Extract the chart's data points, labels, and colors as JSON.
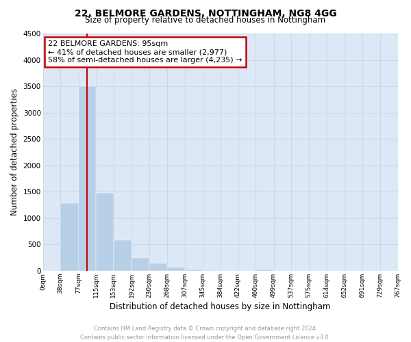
{
  "title1": "22, BELMORE GARDENS, NOTTINGHAM, NG8 4GG",
  "title2": "Size of property relative to detached houses in Nottingham",
  "xlabel": "Distribution of detached houses by size in Nottingham",
  "ylabel": "Number of detached properties",
  "annotation_line1": "22 BELMORE GARDENS: 95sqm",
  "annotation_line2": "← 41% of detached houses are smaller (2,977)",
  "annotation_line3": "58% of semi-detached houses are larger (4,235) →",
  "property_size_sqm": 95,
  "bins": [
    0,
    38,
    77,
    115,
    153,
    192,
    230,
    268,
    307,
    345,
    384,
    422,
    460,
    499,
    537,
    575,
    614,
    652,
    691,
    729,
    767
  ],
  "bin_labels": [
    "0sqm",
    "38sqm",
    "77sqm",
    "115sqm",
    "153sqm",
    "192sqm",
    "230sqm",
    "268sqm",
    "307sqm",
    "345sqm",
    "384sqm",
    "422sqm",
    "460sqm",
    "499sqm",
    "537sqm",
    "575sqm",
    "614sqm",
    "652sqm",
    "691sqm",
    "729sqm",
    "767sqm"
  ],
  "bar_heights": [
    0,
    1280,
    3500,
    1480,
    580,
    250,
    140,
    70,
    30,
    10,
    5,
    0,
    20,
    0,
    0,
    0,
    0,
    0,
    0,
    0
  ],
  "bar_color": "#b8cfe8",
  "vline_color": "#cc0000",
  "vline_x": 95,
  "annotation_box_color": "#cc0000",
  "ylim": [
    0,
    4500
  ],
  "yticks": [
    0,
    500,
    1000,
    1500,
    2000,
    2500,
    3000,
    3500,
    4000,
    4500
  ],
  "grid_color": "#d0d8e8",
  "bg_color": "#dce8f5",
  "footer": "Contains HM Land Registry data © Crown copyright and database right 2024.\nContains public sector information licensed under the Open Government Licence v3.0."
}
